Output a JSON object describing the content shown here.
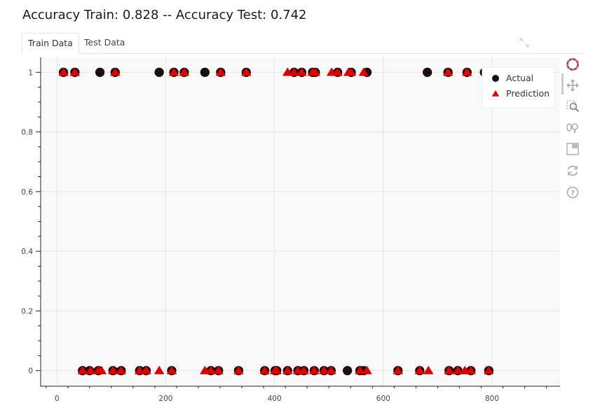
{
  "page_title": "Accuracy Train: 0.828 -- Accuracy Test: 0.742",
  "tabs": [
    {
      "label": "Train Data",
      "active": true
    },
    {
      "label": "Test Data",
      "active": false
    }
  ],
  "toolbar": [
    "bokeh-logo-icon",
    "pan-icon",
    "box-zoom-icon",
    "wheel-zoom-icon",
    "save-icon",
    "reset-icon",
    "help-icon"
  ],
  "colors": {
    "actual": "#1a0d0d",
    "prediction": "#e00000",
    "plot_bg": "#f9f9f9",
    "grid": "#e6e6e6"
  },
  "chart_data": {
    "type": "scatter",
    "title": "",
    "xlabel": "",
    "ylabel": "",
    "xlim": [
      -30,
      925
    ],
    "ylim": [
      -0.05,
      1.05
    ],
    "x_ticks": [
      0,
      200,
      400,
      600,
      800
    ],
    "y_ticks": [
      0,
      0.2,
      0.4,
      0.6,
      0.8,
      1
    ],
    "x_tick_labels": [
      "0",
      "200",
      "400",
      "600",
      "800"
    ],
    "y_tick_labels": [
      "0",
      "0.2",
      "0.4",
      "0.6",
      "0.8",
      "1"
    ],
    "grid": true,
    "legend_position": "top-right",
    "series": [
      {
        "name": "Actual",
        "marker": "circle",
        "points": [
          [
            12,
            1
          ],
          [
            33,
            1
          ],
          [
            79,
            1
          ],
          [
            107,
            1
          ],
          [
            188,
            1
          ],
          [
            215,
            1
          ],
          [
            234,
            1
          ],
          [
            272,
            1
          ],
          [
            301,
            1
          ],
          [
            348,
            1
          ],
          [
            436,
            1
          ],
          [
            450,
            1
          ],
          [
            470,
            1
          ],
          [
            475,
            1
          ],
          [
            516,
            1
          ],
          [
            541,
            1
          ],
          [
            570,
            1
          ],
          [
            681,
            1
          ],
          [
            719,
            1
          ],
          [
            754,
            1
          ],
          [
            786,
            1
          ],
          [
            47,
            0
          ],
          [
            60,
            0
          ],
          [
            76,
            0
          ],
          [
            103,
            0
          ],
          [
            118,
            0
          ],
          [
            152,
            0
          ],
          [
            164,
            0
          ],
          [
            211,
            0
          ],
          [
            283,
            0
          ],
          [
            297,
            0
          ],
          [
            334,
            0
          ],
          [
            382,
            0
          ],
          [
            401,
            0
          ],
          [
            404,
            0
          ],
          [
            424,
            0
          ],
          [
            443,
            0
          ],
          [
            454,
            0
          ],
          [
            473,
            0
          ],
          [
            491,
            0
          ],
          [
            504,
            0
          ],
          [
            534,
            0
          ],
          [
            557,
            0
          ],
          [
            564,
            0
          ],
          [
            627,
            0
          ],
          [
            667,
            0
          ],
          [
            721,
            0
          ],
          [
            737,
            0
          ],
          [
            761,
            0
          ],
          [
            794,
            0
          ]
        ]
      },
      {
        "name": "Prediction",
        "marker": "triangle",
        "points": [
          [
            12,
            1
          ],
          [
            33,
            1
          ],
          [
            107,
            1
          ],
          [
            215,
            1
          ],
          [
            234,
            1
          ],
          [
            301,
            1
          ],
          [
            348,
            1
          ],
          [
            424,
            1
          ],
          [
            436,
            1
          ],
          [
            450,
            1
          ],
          [
            470,
            1
          ],
          [
            475,
            1
          ],
          [
            505,
            1
          ],
          [
            516,
            1
          ],
          [
            536,
            1
          ],
          [
            541,
            1
          ],
          [
            564,
            1
          ],
          [
            719,
            1
          ],
          [
            754,
            1
          ],
          [
            47,
            0
          ],
          [
            62,
            0
          ],
          [
            76,
            0
          ],
          [
            82,
            0
          ],
          [
            103,
            0
          ],
          [
            118,
            0
          ],
          [
            152,
            0
          ],
          [
            164,
            0
          ],
          [
            188,
            0
          ],
          [
            211,
            0
          ],
          [
            272,
            0
          ],
          [
            283,
            0
          ],
          [
            297,
            0
          ],
          [
            334,
            0
          ],
          [
            382,
            0
          ],
          [
            401,
            0
          ],
          [
            404,
            0
          ],
          [
            424,
            0
          ],
          [
            443,
            0
          ],
          [
            454,
            0
          ],
          [
            473,
            0
          ],
          [
            491,
            0
          ],
          [
            504,
            0
          ],
          [
            557,
            0
          ],
          [
            570,
            0
          ],
          [
            627,
            0
          ],
          [
            667,
            0
          ],
          [
            683,
            0
          ],
          [
            721,
            0
          ],
          [
            737,
            0
          ],
          [
            750,
            0
          ],
          [
            761,
            0
          ],
          [
            794,
            0
          ]
        ]
      }
    ]
  }
}
